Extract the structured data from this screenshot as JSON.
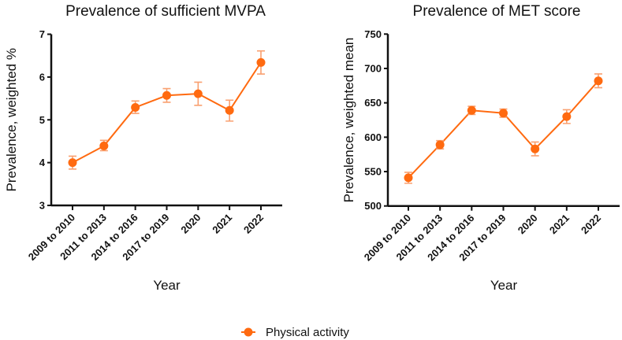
{
  "chart_data": [
    {
      "type": "line",
      "title": "Prevalence of sufficient MVPA",
      "xlabel": "Year",
      "ylabel": "Prevalence, weighted %",
      "categories": [
        "2009 to 2010",
        "2011 to 2013",
        "2014 to 2016",
        "2017 to 2019",
        "2020",
        "2021",
        "2022"
      ],
      "ylim": [
        3,
        7
      ],
      "yticks": [
        3,
        4,
        5,
        6,
        7
      ],
      "series": [
        {
          "name": "Physical activity",
          "values": [
            4.0,
            4.39,
            5.29,
            5.57,
            5.61,
            5.22,
            6.34
          ],
          "lower": [
            3.85,
            4.28,
            5.15,
            5.41,
            5.34,
            4.97,
            6.07
          ],
          "upper": [
            4.15,
            4.52,
            5.44,
            5.73,
            5.88,
            5.46,
            6.61
          ]
        }
      ],
      "grid": false
    },
    {
      "type": "line",
      "title": "Prevalence of MET score",
      "xlabel": "Year",
      "ylabel": "Prevalence, weighted mean",
      "categories": [
        "2009 to 2010",
        "2011 to 2013",
        "2014 to 2016",
        "2017 to 2019",
        "2020",
        "2021",
        "2022"
      ],
      "ylim": [
        500,
        750
      ],
      "yticks": [
        500,
        550,
        600,
        650,
        700,
        750
      ],
      "series": [
        {
          "name": "Physical activity",
          "values": [
            541,
            589,
            639,
            635,
            583,
            630,
            682
          ],
          "lower": [
            533,
            583,
            633,
            629,
            573,
            620,
            672
          ],
          "upper": [
            549,
            595,
            645,
            641,
            593,
            640,
            692
          ]
        }
      ],
      "grid": false
    }
  ],
  "legend": {
    "label": "Physical activity",
    "placement": "bottom-center"
  },
  "colors": {
    "line": "#FF6A10",
    "errorbar": "#F9A070",
    "axis": "#111111"
  }
}
